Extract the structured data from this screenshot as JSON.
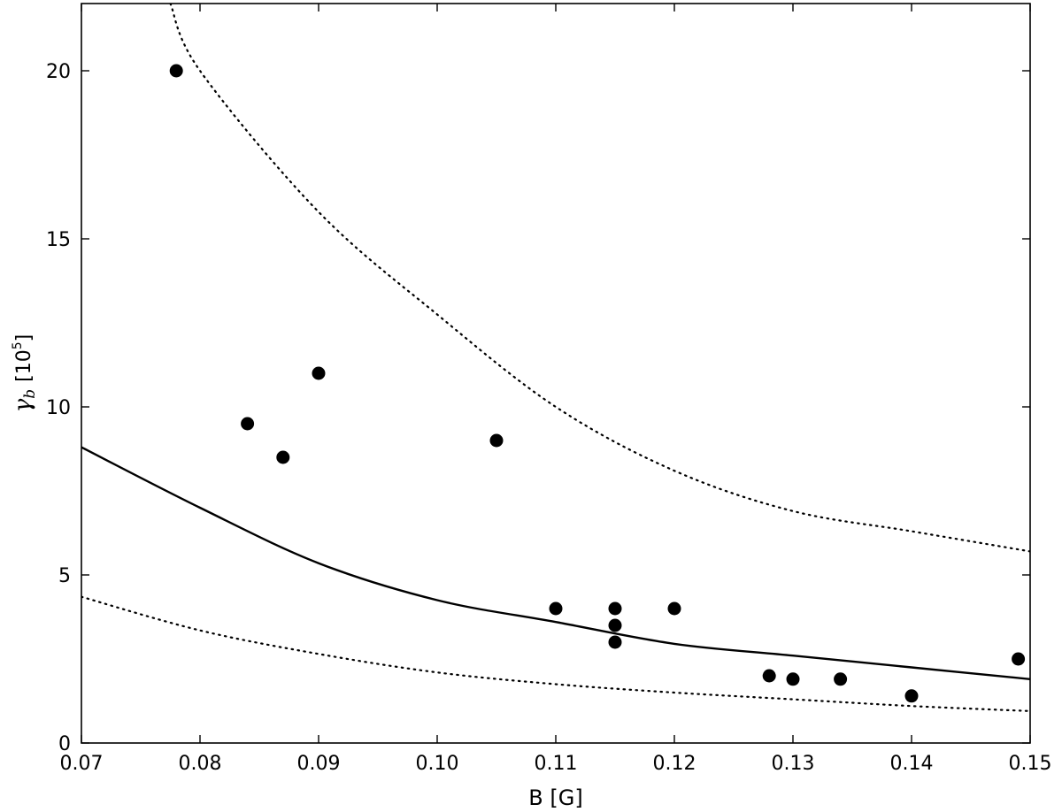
{
  "chart_data": {
    "type": "scatter",
    "xlabel": "B [G]",
    "ylabel": {
      "symbol": "γ",
      "subscript": "b",
      "unit_open": "[10",
      "unit_exp": "5",
      "unit_close": "]"
    },
    "xlim": [
      0.07,
      0.15
    ],
    "ylim": [
      0,
      22
    ],
    "xticks": [
      0.07,
      0.08,
      0.09,
      0.1,
      0.11,
      0.12,
      0.13,
      0.14,
      0.15
    ],
    "xtick_labels": [
      "0.07",
      "0.08",
      "0.09",
      "0.10",
      "0.11",
      "0.12",
      "0.13",
      "0.14",
      "0.15"
    ],
    "yticks": [
      0,
      5,
      10,
      15,
      20
    ],
    "ytick_labels": [
      "0",
      "5",
      "10",
      "15",
      "20"
    ],
    "grid": false,
    "legend": "none",
    "points": [
      {
        "x": 0.078,
        "y": 20.0
      },
      {
        "x": 0.084,
        "y": 9.5
      },
      {
        "x": 0.087,
        "y": 8.5
      },
      {
        "x": 0.09,
        "y": 11.0
      },
      {
        "x": 0.105,
        "y": 9.0
      },
      {
        "x": 0.11,
        "y": 4.0
      },
      {
        "x": 0.115,
        "y": 4.0
      },
      {
        "x": 0.115,
        "y": 3.5
      },
      {
        "x": 0.115,
        "y": 3.0
      },
      {
        "x": 0.12,
        "y": 4.0
      },
      {
        "x": 0.128,
        "y": 2.0
      },
      {
        "x": 0.13,
        "y": 1.9
      },
      {
        "x": 0.134,
        "y": 1.9
      },
      {
        "x": 0.14,
        "y": 1.4
      },
      {
        "x": 0.149,
        "y": 2.5
      }
    ],
    "curves": [
      {
        "style": "solid",
        "x": [
          0.07,
          0.08,
          0.09,
          0.1,
          0.11,
          0.12,
          0.13,
          0.14,
          0.15
        ],
        "y": [
          8.8,
          7.0,
          5.35,
          4.25,
          3.6,
          2.95,
          2.6,
          2.25,
          1.9
        ]
      },
      {
        "style": "dotted",
        "x": [
          0.0775,
          0.08,
          0.09,
          0.1,
          0.11,
          0.12,
          0.13,
          0.14,
          0.15
        ],
        "y": [
          22.0,
          20.0,
          15.8,
          12.75,
          10.0,
          8.1,
          6.9,
          6.3,
          5.7
        ]
      },
      {
        "style": "dotted",
        "x": [
          0.07,
          0.08,
          0.09,
          0.1,
          0.11,
          0.12,
          0.13,
          0.14,
          0.15
        ],
        "y": [
          4.35,
          3.35,
          2.65,
          2.1,
          1.75,
          1.5,
          1.3,
          1.1,
          0.95
        ]
      }
    ],
    "colors": {
      "marker": "#000000",
      "line": "#000000",
      "axes": "#000000"
    }
  }
}
